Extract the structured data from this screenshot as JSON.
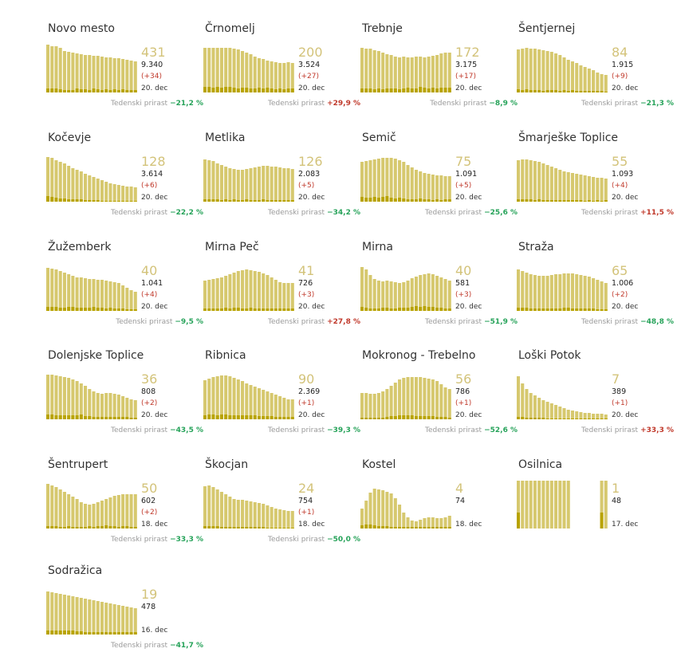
{
  "week_label": "Tedenski prirast",
  "colors": {
    "bar": "#d6c86e",
    "bar_dark": "#b8a300",
    "active_text": "#d3c37a",
    "down": "#27a35a",
    "up": "#c0392b"
  },
  "chart_data": [
    {
      "type": "bar",
      "title": "Novo mesto",
      "active": "431",
      "total": "9.340",
      "delta": "(+34)",
      "date": "20. dec",
      "week": "−21,2 %",
      "week_dir": "down",
      "active_series": [
        60,
        58,
        58,
        56,
        52,
        51,
        50,
        49,
        48,
        47,
        47,
        46,
        46,
        45,
        44,
        44,
        43,
        43,
        42,
        41,
        40,
        39
      ],
      "new_series": [
        5,
        5,
        5,
        4,
        3,
        3,
        3,
        5,
        4,
        4,
        3,
        5,
        4,
        3,
        4,
        3,
        4,
        3,
        4,
        3,
        3,
        3
      ]
    },
    {
      "type": "bar",
      "title": "Črnomelj",
      "active": "200",
      "total": "3.524",
      "delta": "(+27)",
      "date": "20. dec",
      "week": "+29,9 %",
      "week_dir": "up",
      "active_series": [
        56,
        56,
        56,
        56,
        56,
        56,
        56,
        55,
        54,
        52,
        50,
        48,
        45,
        43,
        42,
        40,
        39,
        38,
        37,
        37,
        38,
        37
      ],
      "new_series": [
        7,
        7,
        6,
        7,
        6,
        7,
        7,
        6,
        5,
        6,
        6,
        5,
        5,
        6,
        5,
        6,
        5,
        4,
        5,
        4,
        5,
        5
      ]
    },
    {
      "type": "bar",
      "title": "Trebnje",
      "active": "172",
      "total": "3.175",
      "delta": "(+17)",
      "date": "20. dec",
      "week": "−8,9 %",
      "week_dir": "down",
      "active_series": [
        56,
        55,
        55,
        53,
        52,
        50,
        48,
        47,
        45,
        44,
        45,
        44,
        44,
        45,
        45,
        44,
        45,
        46,
        47,
        49,
        50,
        50
      ],
      "new_series": [
        5,
        5,
        5,
        4,
        5,
        4,
        5,
        5,
        5,
        4,
        5,
        6,
        5,
        5,
        7,
        6,
        5,
        6,
        5,
        6,
        6,
        6
      ]
    },
    {
      "type": "bar",
      "title": "Šentjernej",
      "active": "84",
      "total": "1.915",
      "delta": "(+9)",
      "date": "20. dec",
      "week": "−21,3 %",
      "week_dir": "down",
      "active_series": [
        54,
        55,
        56,
        55,
        55,
        54,
        53,
        52,
        51,
        49,
        47,
        44,
        41,
        39,
        37,
        34,
        32,
        30,
        28,
        25,
        23,
        22
      ],
      "new_series": [
        4,
        3,
        4,
        3,
        3,
        3,
        2,
        3,
        3,
        3,
        2,
        3,
        2,
        3,
        2,
        2,
        2,
        2,
        2,
        2,
        2,
        1
      ]
    },
    {
      "type": "bar",
      "title": "Kočevje",
      "active": "128",
      "total": "3.614",
      "delta": "(+6)",
      "date": "20. dec",
      "week": "−22,2 %",
      "week_dir": "down",
      "active_series": [
        56,
        55,
        52,
        50,
        48,
        45,
        42,
        40,
        38,
        35,
        33,
        31,
        29,
        27,
        25,
        23,
        22,
        21,
        20,
        19,
        19,
        18
      ],
      "new_series": [
        7,
        6,
        5,
        4,
        4,
        3,
        3,
        3,
        3,
        2,
        2,
        2,
        2,
        1,
        1,
        1,
        1,
        1,
        1,
        1,
        1,
        1
      ]
    },
    {
      "type": "bar",
      "title": "Metlika",
      "active": "126",
      "total": "2.083",
      "delta": "(+5)",
      "date": "20. dec",
      "week": "−34,2 %",
      "week_dir": "down",
      "active_series": [
        53,
        52,
        51,
        48,
        46,
        44,
        42,
        41,
        40,
        40,
        41,
        42,
        43,
        44,
        45,
        45,
        44,
        44,
        43,
        42,
        42,
        41
      ],
      "new_series": [
        3,
        3,
        3,
        3,
        2,
        3,
        2,
        3,
        2,
        2,
        3,
        2,
        2,
        2,
        3,
        2,
        2,
        2,
        2,
        2,
        2,
        2
      ]
    },
    {
      "type": "bar",
      "title": "Semič",
      "active": "75",
      "total": "1.091",
      "delta": "(+5)",
      "date": "20. dec",
      "week": "−25,6 %",
      "week_dir": "down",
      "active_series": [
        50,
        51,
        52,
        53,
        54,
        55,
        55,
        55,
        54,
        52,
        50,
        46,
        43,
        40,
        38,
        36,
        35,
        34,
        33,
        33,
        32,
        32
      ],
      "new_series": [
        6,
        5,
        5,
        6,
        5,
        6,
        7,
        5,
        4,
        5,
        4,
        3,
        3,
        3,
        4,
        3,
        3,
        2,
        3,
        2,
        3,
        3
      ]
    },
    {
      "type": "bar",
      "title": "Šmarješke Toplice",
      "active": "55",
      "total": "1.093",
      "delta": "(+4)",
      "date": "20. dec",
      "week": "+11,5 %",
      "week_dir": "up",
      "active_series": [
        52,
        53,
        53,
        52,
        51,
        50,
        48,
        46,
        44,
        42,
        40,
        38,
        37,
        36,
        35,
        34,
        33,
        32,
        31,
        30,
        30,
        29
      ],
      "new_series": [
        3,
        3,
        3,
        3,
        2,
        3,
        2,
        2,
        2,
        2,
        2,
        2,
        2,
        2,
        2,
        2,
        1,
        2,
        1,
        2,
        1,
        2
      ]
    },
    {
      "type": "bar",
      "title": "Žužemberk",
      "active": "40",
      "total": "1.041",
      "delta": "(+4)",
      "date": "20. dec",
      "week": "−9,5 %",
      "week_dir": "down",
      "active_series": [
        54,
        53,
        52,
        50,
        48,
        46,
        44,
        42,
        42,
        41,
        40,
        40,
        39,
        39,
        38,
        37,
        36,
        35,
        32,
        29,
        26,
        24
      ],
      "new_series": [
        5,
        5,
        5,
        4,
        4,
        5,
        5,
        4,
        4,
        4,
        4,
        5,
        4,
        4,
        3,
        4,
        3,
        3,
        3,
        2,
        2,
        2
      ]
    },
    {
      "type": "bar",
      "title": "Mirna Peč",
      "active": "41",
      "total": "726",
      "delta": "(+3)",
      "date": "20. dec",
      "week": "+27,8 %",
      "week_dir": "up",
      "active_series": [
        38,
        39,
        40,
        41,
        42,
        44,
        46,
        48,
        50,
        51,
        52,
        51,
        50,
        49,
        47,
        45,
        42,
        39,
        36,
        35,
        35,
        35
      ],
      "new_series": [
        3,
        3,
        3,
        3,
        3,
        4,
        3,
        4,
        4,
        3,
        3,
        4,
        3,
        3,
        3,
        3,
        3,
        3,
        3,
        3,
        3,
        3
      ]
    },
    {
      "type": "bar",
      "title": "Mirna",
      "active": "40",
      "total": "581",
      "delta": "(+3)",
      "date": "20. dec",
      "week": "−51,9 %",
      "week_dir": "down",
      "active_series": [
        55,
        52,
        45,
        40,
        38,
        37,
        38,
        37,
        36,
        35,
        36,
        38,
        41,
        43,
        45,
        46,
        47,
        46,
        44,
        42,
        40,
        38
      ],
      "new_series": [
        5,
        4,
        3,
        3,
        3,
        4,
        4,
        3,
        3,
        4,
        4,
        4,
        5,
        6,
        5,
        6,
        5,
        5,
        4,
        4,
        3,
        3
      ]
    },
    {
      "type": "bar",
      "title": "Straža",
      "active": "65",
      "total": "1.006",
      "delta": "(+2)",
      "date": "20. dec",
      "week": "−48,8 %",
      "week_dir": "down",
      "active_series": [
        52,
        50,
        48,
        46,
        45,
        44,
        44,
        44,
        45,
        46,
        46,
        47,
        47,
        47,
        46,
        45,
        44,
        43,
        41,
        39,
        37,
        35
      ],
      "new_series": [
        4,
        4,
        4,
        3,
        3,
        3,
        3,
        3,
        3,
        3,
        3,
        4,
        4,
        3,
        3,
        3,
        3,
        3,
        3,
        2,
        2,
        2
      ]
    },
    {
      "type": "bar",
      "title": "Dolenjske Toplice",
      "active": "36",
      "total": "808",
      "delta": "(+2)",
      "date": "20. dec",
      "week": "−43,5 %",
      "week_dir": "down",
      "active_series": [
        56,
        56,
        55,
        54,
        53,
        52,
        50,
        48,
        45,
        42,
        38,
        35,
        33,
        32,
        33,
        33,
        32,
        31,
        29,
        27,
        25,
        24
      ],
      "new_series": [
        6,
        6,
        5,
        5,
        5,
        5,
        5,
        5,
        6,
        4,
        4,
        3,
        3,
        3,
        3,
        3,
        3,
        3,
        3,
        3,
        2,
        2
      ]
    },
    {
      "type": "bar",
      "title": "Ribnica",
      "active": "90",
      "total": "2.369",
      "delta": "(+1)",
      "date": "20. dec",
      "week": "−39,3 %",
      "week_dir": "down",
      "active_series": [
        49,
        51,
        53,
        54,
        55,
        55,
        54,
        52,
        50,
        48,
        45,
        43,
        41,
        39,
        37,
        35,
        33,
        31,
        29,
        27,
        25,
        25
      ],
      "new_series": [
        5,
        6,
        6,
        5,
        6,
        6,
        5,
        5,
        5,
        5,
        5,
        5,
        5,
        4,
        4,
        4,
        4,
        3,
        3,
        3,
        3,
        3
      ]
    },
    {
      "type": "bar",
      "title": "Mokronog - Trebelno",
      "active": "56",
      "total": "786",
      "delta": "(+1)",
      "date": "20. dec",
      "week": "−52,6 %",
      "week_dir": "down",
      "active_series": [
        33,
        33,
        32,
        32,
        33,
        35,
        38,
        42,
        46,
        50,
        52,
        53,
        53,
        53,
        53,
        52,
        51,
        50,
        48,
        44,
        40,
        38
      ],
      "new_series": [
        2,
        2,
        2,
        2,
        2,
        2,
        3,
        4,
        4,
        5,
        5,
        5,
        5,
        4,
        4,
        4,
        4,
        4,
        3,
        3,
        3,
        2
      ]
    },
    {
      "type": "bar",
      "title": "Loški Potok",
      "active": "7",
      "total": "389",
      "delta": "(+1)",
      "date": "20. dec",
      "week": "+33,3 %",
      "week_dir": "up",
      "active_series": [
        54,
        45,
        38,
        33,
        30,
        27,
        24,
        22,
        20,
        18,
        16,
        14,
        12,
        11,
        10,
        9,
        8,
        8,
        7,
        7,
        7,
        6
      ],
      "new_series": [
        3,
        3,
        2,
        2,
        2,
        2,
        2,
        1,
        1,
        1,
        1,
        1,
        1,
        1,
        1,
        1,
        1,
        1,
        1,
        1,
        1,
        1
      ]
    },
    {
      "type": "bar",
      "title": "Šentrupert",
      "active": "50",
      "total": "602",
      "delta": "(+2)",
      "date": "18. dec",
      "week": "−33,3 %",
      "week_dir": "down",
      "active_series": [
        56,
        54,
        52,
        49,
        46,
        43,
        40,
        37,
        33,
        31,
        30,
        31,
        33,
        35,
        37,
        39,
        41,
        42,
        43,
        43,
        43,
        43
      ],
      "new_series": [
        3,
        3,
        3,
        2,
        2,
        3,
        2,
        2,
        2,
        2,
        3,
        2,
        3,
        3,
        4,
        3,
        3,
        2,
        3,
        3,
        2,
        2
      ]
    },
    {
      "type": "bar",
      "title": "Škocjan",
      "active": "24",
      "total": "754",
      "delta": "(+1)",
      "date": "18. dec",
      "week": "−50,0 %",
      "week_dir": "down",
      "active_series": [
        53,
        54,
        52,
        49,
        46,
        43,
        40,
        37,
        36,
        36,
        35,
        34,
        33,
        32,
        31,
        29,
        27,
        25,
        24,
        23,
        22,
        22
      ],
      "new_series": [
        3,
        3,
        3,
        3,
        2,
        2,
        2,
        2,
        2,
        2,
        2,
        2,
        2,
        2,
        2,
        1,
        1,
        1,
        1,
        1,
        1,
        1
      ]
    },
    {
      "type": "bar",
      "title": "Kostel",
      "active": "4",
      "total": "74",
      "delta": "",
      "date": "18. dec",
      "week": "",
      "week_dir": "down",
      "active_series": [
        25,
        35,
        45,
        50,
        49,
        48,
        46,
        44,
        38,
        30,
        20,
        14,
        10,
        9,
        11,
        13,
        14,
        14,
        13,
        13,
        14,
        16
      ],
      "new_series": [
        4,
        5,
        5,
        4,
        3,
        3,
        3,
        2,
        2,
        2,
        2,
        2,
        2,
        2,
        2,
        2,
        2,
        2,
        2,
        2,
        2,
        2
      ]
    },
    {
      "type": "bar",
      "title": "Osilnica",
      "active": "1",
      "total": "48",
      "delta": "",
      "date": "17. dec",
      "week": "",
      "week_dir": "down",
      "active_series": [
        60,
        60,
        60,
        60,
        60,
        60,
        60,
        60,
        60,
        60,
        60,
        60,
        60,
        0,
        0,
        0,
        0,
        0,
        0,
        0,
        60,
        60
      ],
      "new_series": [
        20,
        0,
        0,
        0,
        0,
        0,
        0,
        0,
        0,
        0,
        0,
        0,
        0,
        0,
        0,
        0,
        0,
        0,
        0,
        0,
        20,
        0
      ]
    },
    {
      "type": "bar",
      "title": "Sodražica",
      "active": "19",
      "total": "478",
      "delta": "",
      "date": "16. dec",
      "week": "−41,7 %",
      "week_dir": "down",
      "active_series": [
        54,
        53,
        52,
        51,
        50,
        49,
        48,
        47,
        46,
        45,
        44,
        43,
        42,
        41,
        40,
        39,
        38,
        37,
        36,
        35,
        34,
        33
      ],
      "new_series": [
        5,
        5,
        5,
        5,
        5,
        5,
        5,
        4,
        4,
        3,
        3,
        3,
        3,
        3,
        3,
        3,
        3,
        3,
        3,
        3,
        3,
        3
      ]
    }
  ]
}
